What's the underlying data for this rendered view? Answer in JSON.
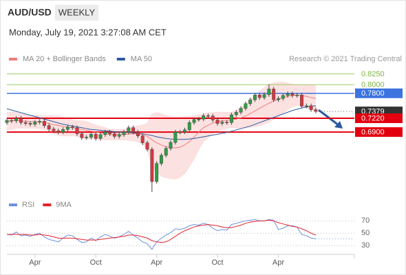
{
  "header": {
    "symbol": "AUD/USD",
    "timeframe": "WEEKLY",
    "timestamp": "Monday, July 19, 2021 3:27:08 AM CET"
  },
  "chart_data": [
    {
      "type": "candlestick",
      "source": "Research © 2021 Trading Central",
      "x": [
        0,
        2,
        4,
        6,
        8,
        10,
        12,
        14,
        16,
        18,
        20,
        22,
        24,
        26,
        28,
        30,
        32,
        34,
        36,
        38,
        40,
        42,
        44,
        46,
        48,
        50,
        52,
        54,
        56,
        58,
        60,
        62,
        64,
        66,
        68,
        70,
        72,
        74,
        76,
        78,
        80,
        82,
        84,
        86,
        88,
        90,
        92,
        94,
        96,
        98,
        100,
        102,
        104,
        106,
        108,
        110,
        112,
        114,
        116,
        118,
        120,
        122,
        124,
        126,
        128,
        130,
        132
      ],
      "xlim": [
        0,
        148.5
      ],
      "xticks": [
        {
          "value": 12,
          "label": "Apr"
        },
        {
          "value": 38,
          "label": "Oct"
        },
        {
          "value": 64,
          "label": "Apr"
        },
        {
          "value": 90,
          "label": "Oct"
        },
        {
          "value": 116,
          "label": "Apr"
        }
      ],
      "ylim": [
        0.54,
        0.845
      ],
      "up_color": "#2f9e44",
      "down_color": "#d9363e",
      "open": [
        0.712,
        0.717,
        0.716,
        0.722,
        0.712,
        0.71,
        0.708,
        0.713,
        0.715,
        0.705,
        0.697,
        0.693,
        0.69,
        0.696,
        0.702,
        0.7,
        0.686,
        0.677,
        0.678,
        0.685,
        0.675,
        0.684,
        0.69,
        0.686,
        0.68,
        0.684,
        0.69,
        0.7,
        0.69,
        0.681,
        0.665,
        0.65,
        0.575,
        0.617,
        0.636,
        0.652,
        0.666,
        0.69,
        0.69,
        0.695,
        0.712,
        0.719,
        0.72,
        0.728,
        0.727,
        0.718,
        0.71,
        0.713,
        0.712,
        0.73,
        0.736,
        0.745,
        0.756,
        0.765,
        0.776,
        0.77,
        0.777,
        0.79,
        0.765,
        0.768,
        0.775,
        0.779,
        0.775,
        0.776,
        0.75,
        0.751,
        0.742
      ],
      "high": [
        0.722,
        0.722,
        0.727,
        0.727,
        0.717,
        0.715,
        0.718,
        0.72,
        0.72,
        0.71,
        0.702,
        0.698,
        0.701,
        0.707,
        0.707,
        0.705,
        0.691,
        0.683,
        0.69,
        0.69,
        0.689,
        0.695,
        0.695,
        0.691,
        0.689,
        0.695,
        0.705,
        0.705,
        0.695,
        0.686,
        0.67,
        0.655,
        0.622,
        0.641,
        0.657,
        0.671,
        0.695,
        0.695,
        0.7,
        0.717,
        0.724,
        0.725,
        0.733,
        0.733,
        0.732,
        0.723,
        0.718,
        0.717,
        0.735,
        0.741,
        0.75,
        0.761,
        0.77,
        0.781,
        0.781,
        0.782,
        0.8007,
        0.795,
        0.773,
        0.78,
        0.784,
        0.784,
        0.781,
        0.781,
        0.756,
        0.756,
        0.747
      ],
      "low": [
        0.707,
        0.711,
        0.711,
        0.707,
        0.705,
        0.703,
        0.703,
        0.708,
        0.7,
        0.692,
        0.688,
        0.685,
        0.685,
        0.691,
        0.695,
        0.681,
        0.672,
        0.672,
        0.673,
        0.67,
        0.67,
        0.679,
        0.681,
        0.675,
        0.675,
        0.679,
        0.685,
        0.685,
        0.676,
        0.66,
        0.645,
        0.551,
        0.57,
        0.612,
        0.631,
        0.647,
        0.661,
        0.685,
        0.685,
        0.69,
        0.707,
        0.714,
        0.715,
        0.722,
        0.713,
        0.705,
        0.705,
        0.707,
        0.707,
        0.725,
        0.731,
        0.74,
        0.751,
        0.76,
        0.765,
        0.765,
        0.772,
        0.76,
        0.76,
        0.763,
        0.77,
        0.77,
        0.77,
        0.745,
        0.745,
        0.737,
        0.7335
      ],
      "close": [
        0.717,
        0.716,
        0.722,
        0.712,
        0.71,
        0.708,
        0.713,
        0.715,
        0.705,
        0.697,
        0.693,
        0.69,
        0.696,
        0.702,
        0.7,
        0.686,
        0.677,
        0.678,
        0.685,
        0.675,
        0.684,
        0.69,
        0.686,
        0.68,
        0.684,
        0.69,
        0.7,
        0.69,
        0.681,
        0.665,
        0.65,
        0.575,
        0.617,
        0.636,
        0.652,
        0.666,
        0.69,
        0.69,
        0.695,
        0.712,
        0.719,
        0.72,
        0.728,
        0.727,
        0.718,
        0.71,
        0.713,
        0.712,
        0.73,
        0.736,
        0.745,
        0.756,
        0.765,
        0.776,
        0.77,
        0.777,
        0.79,
        0.765,
        0.768,
        0.775,
        0.779,
        0.775,
        0.776,
        0.75,
        0.751,
        0.742,
        0.7379
      ],
      "series": [
        {
          "name": "MA 20 + Bollinger Bands",
          "color": "#f07c7c",
          "band_color": "#fbd9da",
          "values": [
            0.715,
            0.716,
            0.717,
            0.716,
            0.715,
            0.714,
            0.714,
            0.713,
            0.712,
            0.71,
            0.707,
            0.705,
            0.703,
            0.701,
            0.7,
            0.698,
            0.696,
            0.694,
            0.692,
            0.69,
            0.688,
            0.686,
            0.684,
            0.684,
            0.684,
            0.684,
            0.685,
            0.686,
            0.686,
            0.684,
            0.68,
            0.672,
            0.665,
            0.66,
            0.656,
            0.654,
            0.653,
            0.655,
            0.66,
            0.668,
            0.678,
            0.69,
            0.7,
            0.706,
            0.711,
            0.714,
            0.716,
            0.717,
            0.718,
            0.72,
            0.723,
            0.727,
            0.733,
            0.739,
            0.745,
            0.751,
            0.757,
            0.762,
            0.766,
            0.77,
            0.773,
            0.775,
            0.776,
            0.775,
            0.773,
            0.77,
            0.768
          ],
          "upper": [
            0.735,
            0.736,
            0.735,
            0.732,
            0.731,
            0.729,
            0.729,
            0.728,
            0.728,
            0.728,
            0.727,
            0.727,
            0.725,
            0.721,
            0.718,
            0.716,
            0.716,
            0.714,
            0.71,
            0.706,
            0.703,
            0.7,
            0.696,
            0.696,
            0.696,
            0.696,
            0.699,
            0.702,
            0.704,
            0.706,
            0.71,
            0.732,
            0.735,
            0.732,
            0.728,
            0.726,
            0.725,
            0.725,
            0.726,
            0.726,
            0.728,
            0.73,
            0.732,
            0.734,
            0.735,
            0.736,
            0.736,
            0.735,
            0.736,
            0.74,
            0.747,
            0.755,
            0.765,
            0.775,
            0.785,
            0.793,
            0.801,
            0.804,
            0.806,
            0.806,
            0.803,
            0.801,
            0.8,
            0.799,
            0.799,
            0.798,
            0.798
          ],
          "lower": [
            0.695,
            0.696,
            0.699,
            0.7,
            0.699,
            0.699,
            0.699,
            0.698,
            0.696,
            0.692,
            0.687,
            0.683,
            0.681,
            0.681,
            0.682,
            0.68,
            0.676,
            0.674,
            0.674,
            0.674,
            0.673,
            0.672,
            0.672,
            0.672,
            0.672,
            0.672,
            0.671,
            0.67,
            0.668,
            0.662,
            0.65,
            0.612,
            0.595,
            0.588,
            0.584,
            0.582,
            0.581,
            0.585,
            0.594,
            0.61,
            0.628,
            0.65,
            0.668,
            0.678,
            0.687,
            0.692,
            0.696,
            0.699,
            0.7,
            0.7,
            0.699,
            0.699,
            0.701,
            0.703,
            0.705,
            0.709,
            0.713,
            0.72,
            0.726,
            0.734,
            0.743,
            0.749,
            0.752,
            0.751,
            0.747,
            0.742,
            0.738
          ]
        },
        {
          "name": "MA 50",
          "color": "#2c5aa0",
          "values": [
            0.744,
            0.741,
            0.738,
            0.735,
            0.732,
            0.729,
            0.726,
            0.723,
            0.72,
            0.717,
            0.714,
            0.711,
            0.708,
            0.706,
            0.704,
            0.702,
            0.7,
            0.698,
            0.696,
            0.695,
            0.694,
            0.693,
            0.692,
            0.691,
            0.69,
            0.689,
            0.689,
            0.688,
            0.687,
            0.686,
            0.684,
            0.682,
            0.679,
            0.677,
            0.675,
            0.674,
            0.673,
            0.673,
            0.673,
            0.674,
            0.675,
            0.677,
            0.679,
            0.681,
            0.683,
            0.685,
            0.687,
            0.689,
            0.692,
            0.695,
            0.698,
            0.701,
            0.704,
            0.708,
            0.712,
            0.716,
            0.72,
            0.724,
            0.728,
            0.732,
            0.736,
            0.74,
            0.743,
            0.746,
            0.748,
            0.75,
            0.751
          ]
        }
      ],
      "levels": [
        {
          "value": 0.825,
          "label": "0.8250",
          "color": "#9ccc65",
          "box": false,
          "width": 1
        },
        {
          "value": 0.8,
          "label": "0.8000",
          "color": "#9ccc65",
          "box": false,
          "width": 1
        },
        {
          "value": 0.78,
          "label": "0.7800",
          "color": "#3b73e0",
          "box": true,
          "width": 1.5
        },
        {
          "value": 0.7379,
          "label": "0.7379",
          "color": "#333333",
          "box": true,
          "width": 1,
          "dotted": true
        },
        {
          "value": 0.722,
          "label": "0.7220",
          "color": "#e3000f",
          "box": true,
          "width": 2
        },
        {
          "value": 0.69,
          "label": "0.6900",
          "color": "#e3000f",
          "box": true,
          "width": 2
        }
      ]
    },
    {
      "type": "line",
      "ylim": [
        18,
        88
      ],
      "yticks": [
        70,
        50,
        30
      ],
      "grid": true,
      "series": [
        {
          "name": "RSI",
          "color": "#6b8fe0",
          "values": [
            48,
            47,
            52,
            46,
            47,
            45,
            48,
            50,
            44,
            40,
            38,
            36,
            42,
            47,
            46,
            40,
            35,
            36,
            42,
            38,
            44,
            48,
            45,
            42,
            44,
            48,
            53,
            47,
            42,
            36,
            33,
            24,
            36,
            42,
            47,
            51,
            57,
            56,
            58,
            62,
            64,
            63,
            66,
            64,
            58,
            54,
            56,
            55,
            64,
            66,
            68,
            70,
            71,
            72,
            70,
            70,
            72,
            71,
            56,
            58,
            62,
            62,
            60,
            48,
            46,
            42,
            41
          ]
        },
        {
          "name": "9MA",
          "color": "#e8202a",
          "values": [
            48,
            48,
            48,
            48,
            48,
            47,
            47,
            48,
            47,
            46,
            44,
            42,
            42,
            42,
            42,
            41,
            40,
            39,
            39,
            39,
            40,
            41,
            42,
            43,
            44,
            45,
            47,
            47,
            46,
            44,
            42,
            38,
            36,
            35,
            36,
            40,
            45,
            50,
            54,
            57,
            60,
            62,
            63,
            64,
            63,
            62,
            60,
            59,
            59,
            61,
            63,
            66,
            68,
            69,
            70,
            70,
            71,
            70,
            67,
            65,
            63,
            61,
            60,
            57,
            54,
            50,
            47
          ]
        }
      ]
    }
  ]
}
